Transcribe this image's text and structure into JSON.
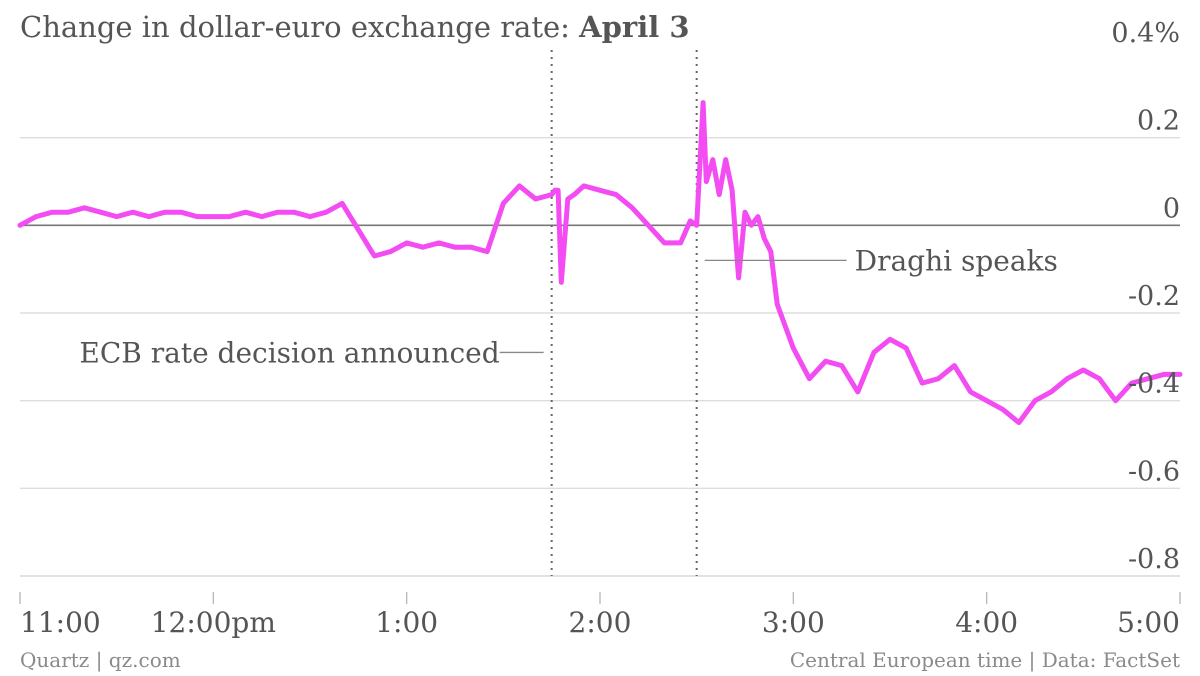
{
  "header": {
    "title_prefix": "Change in dollar-euro exchange rate: ",
    "title_date": "April 3"
  },
  "footer": {
    "source_left": "Quartz | qz.com",
    "source_right": "Central European time | Data: FactSet"
  },
  "colors": {
    "line": "#f24cf2",
    "grid": "#dddddd",
    "zero_line": "#777777",
    "text": "#555555",
    "marker": "#666666"
  },
  "chart_data": {
    "type": "line",
    "title": "Change in dollar-euro exchange rate: April 3",
    "xlabel": "",
    "ylabel": "",
    "ylim": [
      -0.8,
      0.4
    ],
    "xlim": [
      "11:00",
      "17:00"
    ],
    "grid": true,
    "y_ticks": [
      {
        "value": 0.4,
        "label": "0.4%"
      },
      {
        "value": 0.2,
        "label": "0.2"
      },
      {
        "value": 0,
        "label": "0"
      },
      {
        "value": -0.2,
        "label": "-0.2"
      },
      {
        "value": -0.4,
        "label": "-0.4"
      },
      {
        "value": -0.6,
        "label": "-0.6"
      },
      {
        "value": -0.8,
        "label": "-0.8"
      }
    ],
    "x_ticks": [
      {
        "value": "11:00",
        "label": "11:00"
      },
      {
        "value": "12:00",
        "label": "12:00pm"
      },
      {
        "value": "13:00",
        "label": "1:00"
      },
      {
        "value": "14:00",
        "label": "2:00"
      },
      {
        "value": "15:00",
        "label": "3:00"
      },
      {
        "value": "16:00",
        "label": "4:00"
      },
      {
        "value": "17:00",
        "label": "5:00"
      }
    ],
    "annotations": [
      {
        "label": "ECB rate decision announced",
        "x": "13:45",
        "y": -0.29,
        "side": "left"
      },
      {
        "label": "Draghi speaks",
        "x": "14:30",
        "y": -0.08,
        "side": "right"
      }
    ],
    "series": [
      {
        "x": [
          "11:00",
          "11:05",
          "11:10",
          "11:15",
          "11:20",
          "11:25",
          "11:30",
          "11:35",
          "11:40",
          "11:45",
          "11:50",
          "11:55",
          "12:00",
          "12:05",
          "12:10",
          "12:15",
          "12:20",
          "12:25",
          "12:30",
          "12:35",
          "12:40",
          "12:45",
          "12:50",
          "12:55",
          "13:00",
          "13:05",
          "13:10",
          "13:15",
          "13:20",
          "13:25",
          "13:30",
          "13:35",
          "13:40",
          "13:45",
          "13:46",
          "13:47",
          "13:48",
          "13:50",
          "13:52",
          "13:55",
          "14:00",
          "14:05",
          "14:10",
          "14:15",
          "14:20",
          "14:25",
          "14:28",
          "14:30",
          "14:32",
          "14:33",
          "14:35",
          "14:37",
          "14:39",
          "14:41",
          "14:43",
          "14:45",
          "14:47",
          "14:49",
          "14:51",
          "14:53",
          "14:55",
          "15:00",
          "15:05",
          "15:10",
          "15:15",
          "15:20",
          "15:25",
          "15:30",
          "15:35",
          "15:40",
          "15:45",
          "15:50",
          "15:55",
          "16:00",
          "16:05",
          "16:10",
          "16:15",
          "16:20",
          "16:25",
          "16:30",
          "16:35",
          "16:40",
          "16:45",
          "16:50",
          "16:55",
          "17:00"
        ],
        "values": [
          0.0,
          0.02,
          0.03,
          0.03,
          0.04,
          0.03,
          0.02,
          0.03,
          0.02,
          0.03,
          0.03,
          0.02,
          0.02,
          0.02,
          0.03,
          0.02,
          0.03,
          0.03,
          0.02,
          0.03,
          0.05,
          -0.01,
          -0.07,
          -0.06,
          -0.04,
          -0.05,
          -0.04,
          -0.05,
          -0.05,
          -0.06,
          0.05,
          0.09,
          0.06,
          0.07,
          0.08,
          0.08,
          -0.13,
          0.06,
          0.07,
          0.09,
          0.08,
          0.07,
          0.04,
          0.0,
          -0.04,
          -0.04,
          0.01,
          0.0,
          0.28,
          0.1,
          0.15,
          0.07,
          0.15,
          0.08,
          -0.12,
          0.03,
          0.0,
          0.02,
          -0.03,
          -0.06,
          -0.18,
          -0.28,
          -0.35,
          -0.31,
          -0.32,
          -0.38,
          -0.29,
          -0.26,
          -0.28,
          -0.36,
          -0.35,
          -0.32,
          -0.38,
          -0.4,
          -0.42,
          -0.45,
          -0.4,
          -0.38,
          -0.35,
          -0.33,
          -0.35,
          -0.4,
          -0.36,
          -0.35,
          -0.34,
          -0.34
        ]
      }
    ]
  }
}
